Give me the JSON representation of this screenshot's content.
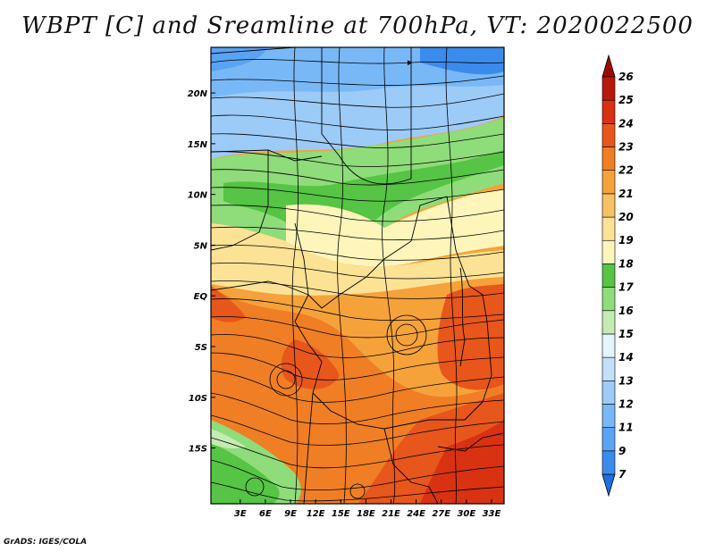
{
  "title": "WBPT [C] and Sreamline at 700hPa, VT: 2020022500",
  "credit": "GrADS: IGES/COLA",
  "map": {
    "lon_range": [
      -0.5,
      34.5
    ],
    "lat_range": [
      -20.5,
      24.5
    ],
    "lat_ticks": [
      {
        "value": 20,
        "label": "20N"
      },
      {
        "value": 15,
        "label": "15N"
      },
      {
        "value": 10,
        "label": "10N"
      },
      {
        "value": 5,
        "label": "5N"
      },
      {
        "value": 0,
        "label": "EQ"
      },
      {
        "value": -5,
        "label": "5S"
      },
      {
        "value": -10,
        "label": "10S"
      },
      {
        "value": -15,
        "label": "15S"
      }
    ],
    "lon_ticks": [
      {
        "value": 3,
        "label": "3E"
      },
      {
        "value": 6,
        "label": "6E"
      },
      {
        "value": 9,
        "label": "9E"
      },
      {
        "value": 12,
        "label": "12E"
      },
      {
        "value": 15,
        "label": "15E"
      },
      {
        "value": 18,
        "label": "18E"
      },
      {
        "value": 21,
        "label": "21E"
      },
      {
        "value": 24,
        "label": "24E"
      },
      {
        "value": 27,
        "label": "27E"
      },
      {
        "value": 30,
        "label": "30E"
      },
      {
        "value": 33,
        "label": "33E"
      }
    ]
  },
  "colorbar": {
    "levels": [
      "7",
      "9",
      "11",
      "12",
      "13",
      "14",
      "15",
      "16",
      "17",
      "18",
      "19",
      "20",
      "21",
      "22",
      "23",
      "24",
      "25",
      "26"
    ],
    "colors": [
      "#1e6fe0",
      "#3b8bec",
      "#5aa3f3",
      "#79b8f6",
      "#9ccbf7",
      "#c2e0fa",
      "#e3f5fc",
      "#c4ecb2",
      "#8fdc7a",
      "#56c444",
      "#fdf5b9",
      "#fce295",
      "#f8c162",
      "#f5a23a",
      "#f07e24",
      "#e7561b",
      "#d83212",
      "#b81a0c",
      "#9c0a06"
    ]
  }
}
